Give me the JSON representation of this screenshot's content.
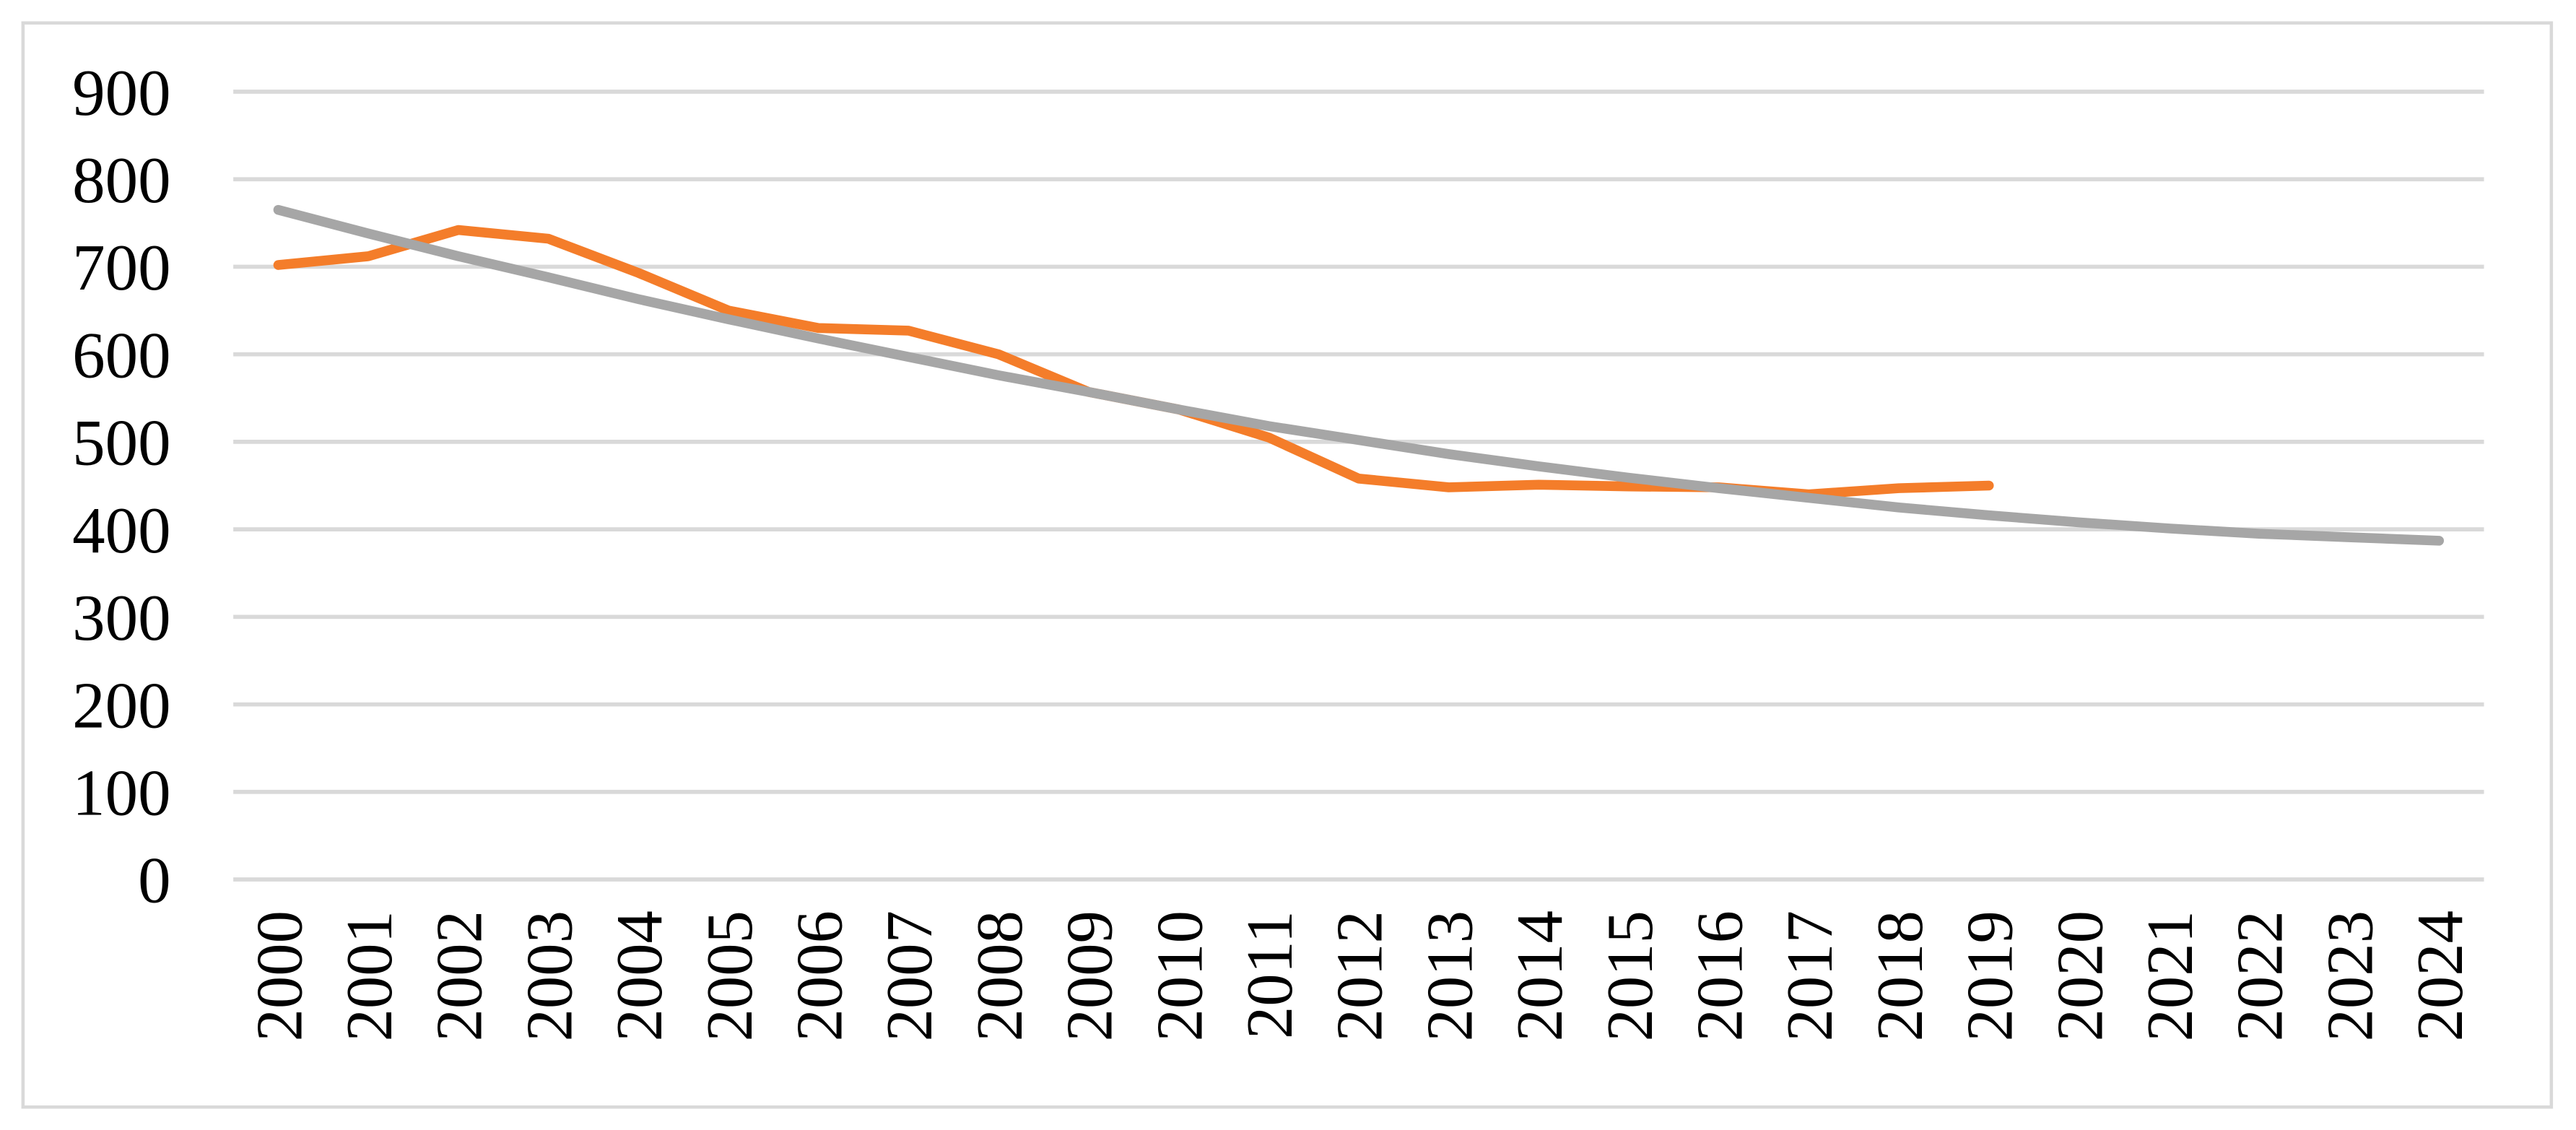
{
  "chart_data": {
    "type": "line",
    "categories": [
      "2000",
      "2001",
      "2002",
      "2003",
      "2004",
      "2005",
      "2006",
      "2007",
      "2008",
      "2009",
      "2010",
      "2011",
      "2012",
      "2013",
      "2014",
      "2015",
      "2016",
      "2017",
      "2018",
      "2019",
      "2020",
      "2021",
      "2022",
      "2023",
      "2024"
    ],
    "series": [
      {
        "color": "#f47d2a",
        "values": [
          702,
          712,
          742,
          732,
          693,
          650,
          630,
          627,
          600,
          557,
          537,
          505,
          458,
          448,
          451,
          449,
          448,
          440,
          447,
          450,
          null,
          null,
          null,
          null,
          null
        ]
      },
      {
        "color": "#a6a6a6",
        "values": [
          765,
          738,
          712,
          688,
          663,
          640,
          618,
          597,
          576,
          557,
          537,
          518,
          502,
          486,
          472,
          459,
          447,
          436,
          425,
          416,
          408,
          401,
          395,
          391,
          387
        ]
      }
    ],
    "ylim": [
      0,
      900
    ],
    "yticks": [
      0,
      100,
      200,
      300,
      400,
      500,
      600,
      700,
      800,
      900
    ],
    "grid": true
  }
}
